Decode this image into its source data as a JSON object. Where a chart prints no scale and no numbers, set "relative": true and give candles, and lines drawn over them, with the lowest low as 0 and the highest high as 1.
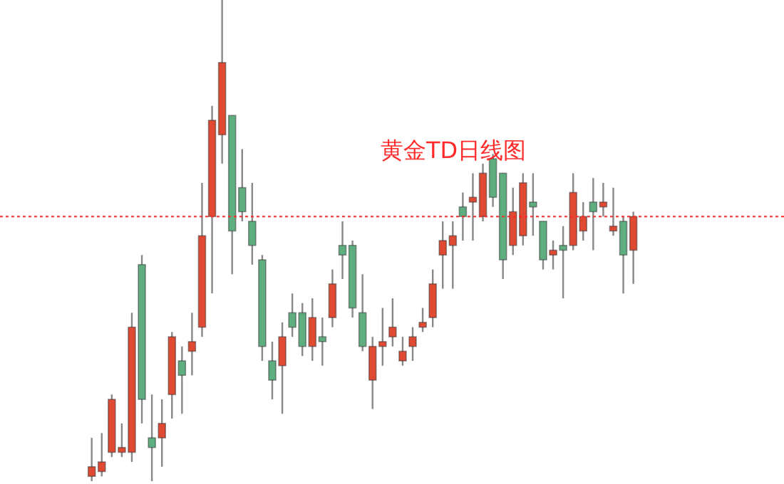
{
  "chart_data": {
    "type": "candlestick",
    "title": "黄金TD日线图",
    "relative": true,
    "tick_labels": false,
    "categories": [
      null,
      null,
      null,
      null,
      null,
      null,
      null,
      null,
      null,
      null,
      null,
      null,
      null,
      null,
      null,
      null,
      null,
      null,
      null,
      null,
      null,
      null,
      null,
      null,
      null,
      null,
      null,
      null,
      null,
      null,
      null,
      null,
      null,
      null,
      null,
      null,
      null,
      null,
      null,
      null,
      null,
      null,
      null,
      null,
      null,
      null,
      null,
      null,
      null,
      null,
      null,
      null,
      null,
      null,
      null
    ],
    "ohlc": [
      [
        0.01,
        0.09,
        0,
        0.03
      ],
      [
        0.02,
        0.1,
        0.01,
        0.04
      ],
      [
        0.06,
        0.18,
        0.05,
        0.17
      ],
      [
        0.06,
        0.12,
        0.05,
        0.07
      ],
      [
        0.06,
        0.35,
        0.04,
        0.32
      ],
      [
        0.45,
        0.47,
        0.12,
        0.17
      ],
      [
        0.09,
        0.18,
        0,
        0.07
      ],
      [
        0.09,
        0.17,
        0.03,
        0.12
      ],
      [
        0.18,
        0.31,
        0.13,
        0.3
      ],
      [
        0.25,
        0.28,
        0.14,
        0.22
      ],
      [
        0.27,
        0.35,
        0.22,
        0.29
      ],
      [
        0.32,
        0.62,
        0.3,
        0.51
      ],
      [
        0.55,
        0.78,
        0.39,
        0.75
      ],
      [
        0.72,
        1,
        0.66,
        0.87
      ],
      [
        0.76,
        0.76,
        0.43,
        0.52
      ],
      [
        0.61,
        0.69,
        0.54,
        0.56
      ],
      [
        0.54,
        0.62,
        0.45,
        0.49
      ],
      [
        0.46,
        0.47,
        0.25,
        0.28
      ],
      [
        0.25,
        0.29,
        0.17,
        0.21
      ],
      [
        0.24,
        0.33,
        0.14,
        0.3
      ],
      [
        0.35,
        0.39,
        0.3,
        0.32
      ],
      [
        0.35,
        0.37,
        0.26,
        0.28
      ],
      [
        0.28,
        0.38,
        0.25,
        0.34
      ],
      [
        0.3,
        0.34,
        0.24,
        0.29
      ],
      [
        0.34,
        0.44,
        0.32,
        0.41
      ],
      [
        0.49,
        0.54,
        0.42,
        0.47
      ],
      [
        0.49,
        0.5,
        0.34,
        0.36
      ],
      [
        0.35,
        0.43,
        0.27,
        0.28
      ],
      [
        0.21,
        0.3,
        0.15,
        0.28
      ],
      [
        0.28,
        0.36,
        0.24,
        0.29
      ],
      [
        0.3,
        0.38,
        0.28,
        0.32
      ],
      [
        0.25,
        0.3,
        0.24,
        0.27
      ],
      [
        0.28,
        0.32,
        0.25,
        0.3
      ],
      [
        0.32,
        0.36,
        0.31,
        0.33
      ],
      [
        0.34,
        0.44,
        0.32,
        0.41
      ],
      [
        0.47,
        0.54,
        0.4,
        0.5
      ],
      [
        0.49,
        0.54,
        0.4,
        0.51
      ],
      [
        0.57,
        0.6,
        0.5,
        0.55
      ],
      [
        0.58,
        0.64,
        0.5,
        0.59
      ],
      [
        0.55,
        0.66,
        0.54,
        0.64
      ],
      [
        0.67,
        0.68,
        0.57,
        0.59
      ],
      [
        0.64,
        0.64,
        0.42,
        0.46
      ],
      [
        0.49,
        0.61,
        0.47,
        0.56
      ],
      [
        0.51,
        0.64,
        0.49,
        0.62
      ],
      [
        0.58,
        0.64,
        0.51,
        0.57
      ],
      [
        0.54,
        0.54,
        0.44,
        0.46
      ],
      [
        0.47,
        0.5,
        0.44,
        0.48
      ],
      [
        0.49,
        0.53,
        0.38,
        0.48
      ],
      [
        0.49,
        0.64,
        0.48,
        0.6
      ],
      [
        0.52,
        0.58,
        0.5,
        0.55
      ],
      [
        0.58,
        0.63,
        0.48,
        0.56
      ],
      [
        0.57,
        0.62,
        0.55,
        0.58
      ],
      [
        0.52,
        0.61,
        0.51,
        0.53
      ],
      [
        0.54,
        0.55,
        0.39,
        0.47
      ],
      [
        0.48,
        0.56,
        0.41,
        0.55
      ]
    ],
    "colors": [
      "#e04a33",
      "#e04a33",
      "#e04a33",
      "#e04a33",
      "#e04a33",
      "#5fae80",
      "#5fae80",
      "#e04a33",
      "#e04a33",
      "#5fae80",
      "#e04a33",
      "#e04a33",
      "#e04a33",
      "#e04a33",
      "#5fae80",
      "#5fae80",
      "#5fae80",
      "#5fae80",
      "#5fae80",
      "#e04a33",
      "#5fae80",
      "#5fae80",
      "#e04a33",
      "#5fae80",
      "#e04a33",
      "#5fae80",
      "#5fae80",
      "#5fae80",
      "#e04a33",
      "#e04a33",
      "#e04a33",
      "#e04a33",
      "#e04a33",
      "#e04a33",
      "#e04a33",
      "#e04a33",
      "#e04a33",
      "#5fae80",
      "#e04a33",
      "#e04a33",
      "#5fae80",
      "#5fae80",
      "#e04a33",
      "#e04a33",
      "#5fae80",
      "#5fae80",
      "#e04a33",
      "#5fae80",
      "#e04a33",
      "#e04a33",
      "#5fae80",
      "#e04a33",
      "#e04a33",
      "#5fae80",
      "#e04a33"
    ],
    "ref_lines": [
      {
        "axis": "y",
        "value": 0.55,
        "color": "#ff2a2a",
        "line_style": "dotted"
      }
    ]
  }
}
